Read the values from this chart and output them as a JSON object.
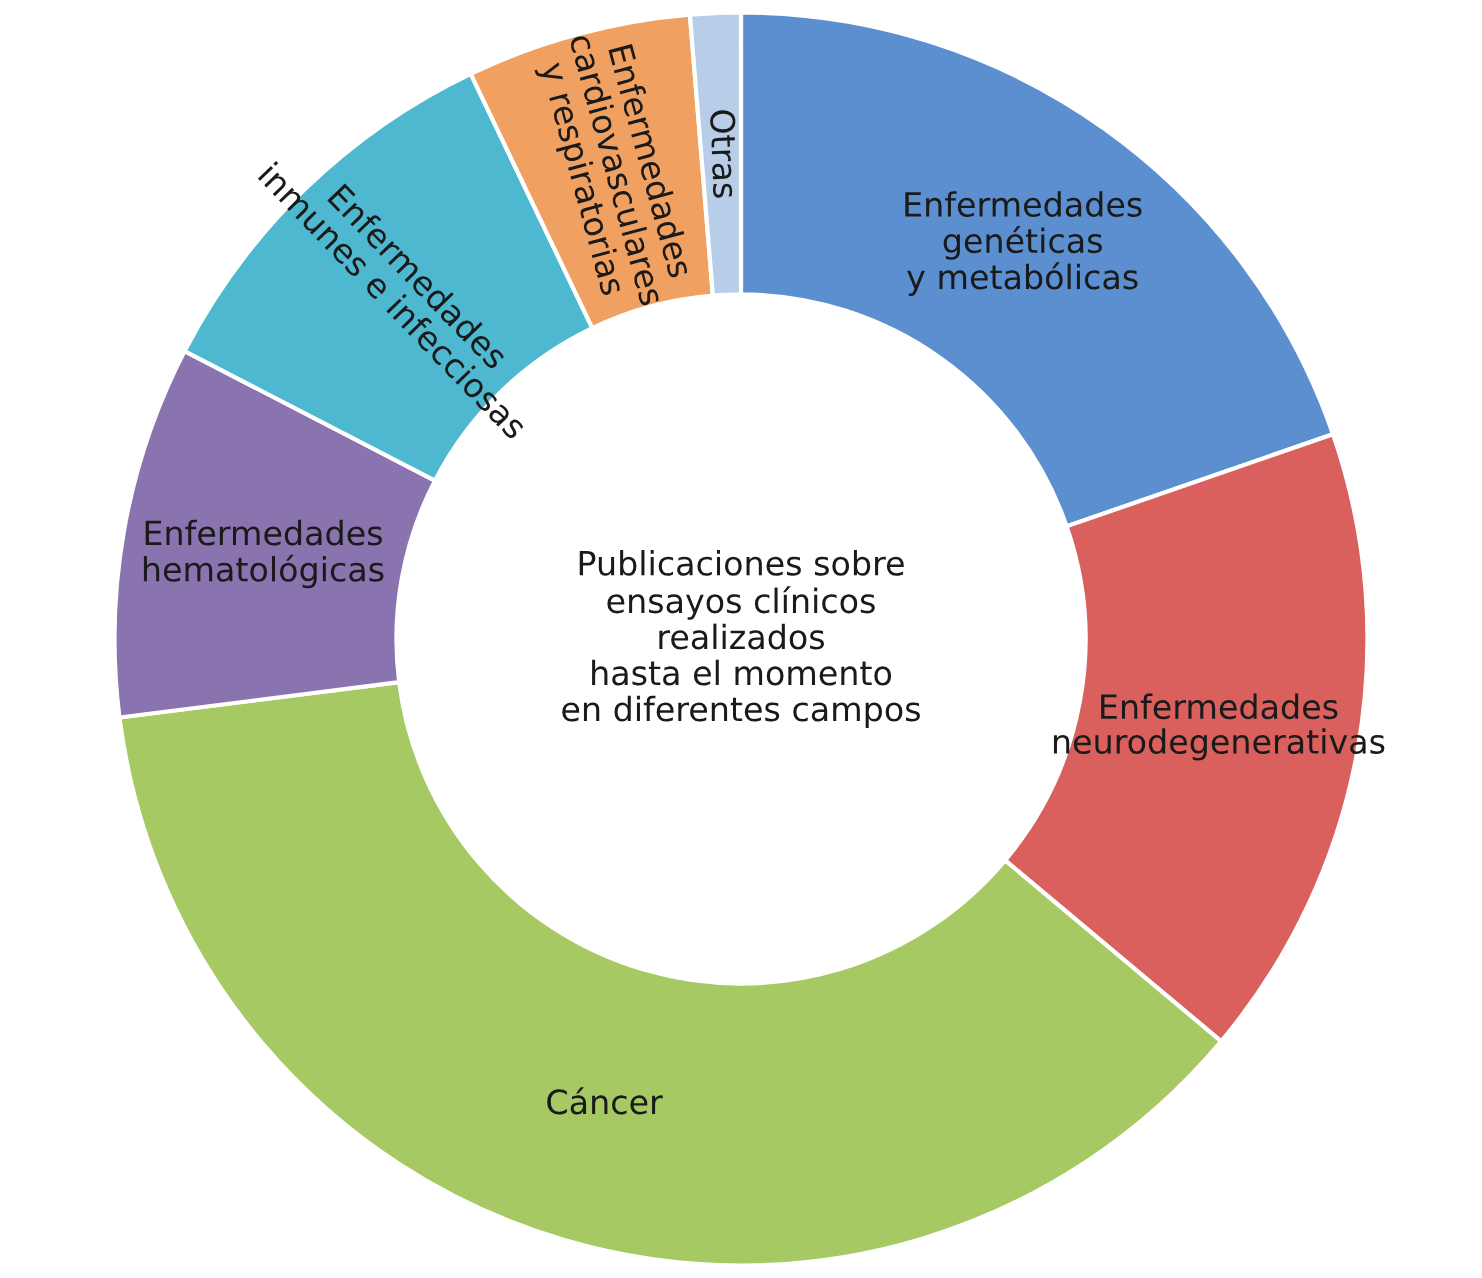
{
  "chart_data": {
    "type": "donut",
    "title": "Publicaciones sobre\nensayos clínicos\nrealizados\nhasta el momento\nen diferentes campos",
    "categories": [
      "Enfermedades\ngenéticas\ny metabólicas",
      "Enfermedades\nneurodegenerativas",
      "Cáncer",
      "Enfermedades\nhematológicas",
      "Enfermedades\ninmunes e infecciosas",
      "Enfermedades\ncardiovasculares\ny respiratorias",
      "Otras"
    ],
    "values": [
      19.7,
      16.4,
      36.9,
      9.6,
      10.3,
      5.8,
      1.3
    ],
    "colors": [
      "#5b8fd0",
      "#d9605c",
      "#a6c964",
      "#8a74b0",
      "#4db8d0",
      "#f0a060",
      "#b8cde8"
    ]
  }
}
